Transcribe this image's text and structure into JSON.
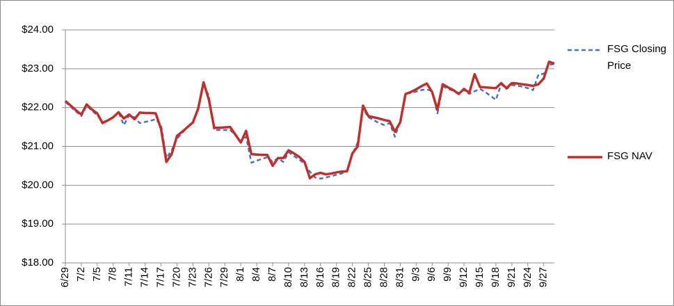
{
  "chart_data": {
    "type": "line",
    "categories": [
      "6/29",
      null,
      null,
      "7/2",
      null,
      null,
      "7/5",
      null,
      null,
      "7/8",
      null,
      null,
      "7/11",
      null,
      null,
      "7/14",
      null,
      null,
      "7/17",
      null,
      null,
      "7/20",
      null,
      null,
      "7/23",
      null,
      null,
      "7/26",
      null,
      null,
      "7/29",
      null,
      null,
      "8/1",
      null,
      null,
      "8/4",
      null,
      null,
      "8/7",
      null,
      null,
      "8/10",
      null,
      null,
      "8/13",
      null,
      null,
      "8/16",
      null,
      null,
      "8/19",
      null,
      null,
      "8/22",
      null,
      null,
      "8/25",
      null,
      null,
      "8/28",
      null,
      null,
      "8/31",
      null,
      null,
      "9/3",
      null,
      null,
      "9/6",
      null,
      null,
      "9/9",
      null,
      null,
      "9/12",
      null,
      null,
      "9/15",
      null,
      null,
      "9/18",
      null,
      null,
      "9/21",
      null,
      null,
      "9/24",
      null,
      null,
      "9/27",
      null,
      null
    ],
    "series": [
      {
        "name": "FSG Closing Price",
        "color": "#4472c4",
        "dash": true,
        "values": [
          22.15,
          22.02,
          21.9,
          21.78,
          22.05,
          21.92,
          21.8,
          21.62,
          21.68,
          21.75,
          21.88,
          21.55,
          21.8,
          21.75,
          21.6,
          21.63,
          21.66,
          21.7,
          21.55,
          20.7,
          20.9,
          21.2,
          21.35,
          21.5,
          21.6,
          21.95,
          22.6,
          22.3,
          21.42,
          21.42,
          21.42,
          21.42,
          21.3,
          21.12,
          21.25,
          20.58,
          20.63,
          20.68,
          20.72,
          20.6,
          20.7,
          20.6,
          20.85,
          20.75,
          20.66,
          20.55,
          20.35,
          20.2,
          20.17,
          20.2,
          20.23,
          20.27,
          20.3,
          20.38,
          20.8,
          21.1,
          21.98,
          21.75,
          21.68,
          21.6,
          21.55,
          21.6,
          21.25,
          21.65,
          22.35,
          22.38,
          22.41,
          22.45,
          22.47,
          22.42,
          21.85,
          22.55,
          22.48,
          22.43,
          22.38,
          22.45,
          22.35,
          22.42,
          22.48,
          22.4,
          22.3,
          22.2,
          22.6,
          22.48,
          22.58,
          22.56,
          22.54,
          22.5,
          22.45,
          22.85,
          22.87,
          23.1,
          23.12
        ]
      },
      {
        "name": "FSG NAV",
        "color": "#c0302b",
        "dash": false,
        "values": [
          22.17,
          22.05,
          21.93,
          21.82,
          22.08,
          21.95,
          21.85,
          21.6,
          21.67,
          21.75,
          21.88,
          21.72,
          21.82,
          21.7,
          21.87,
          21.86,
          21.86,
          21.85,
          21.45,
          20.6,
          20.8,
          21.27,
          21.38,
          21.5,
          21.62,
          21.98,
          22.65,
          22.2,
          21.48,
          21.48,
          21.49,
          21.5,
          21.3,
          21.1,
          21.4,
          20.8,
          20.79,
          20.78,
          20.78,
          20.5,
          20.7,
          20.7,
          20.9,
          20.82,
          20.73,
          20.6,
          20.18,
          20.28,
          20.32,
          20.28,
          20.3,
          20.33,
          20.35,
          20.36,
          20.82,
          21.0,
          22.05,
          21.78,
          21.75,
          21.72,
          21.68,
          21.65,
          21.38,
          21.62,
          22.35,
          22.4,
          22.47,
          22.55,
          22.62,
          22.4,
          21.95,
          22.6,
          22.52,
          22.45,
          22.35,
          22.48,
          22.38,
          22.86,
          22.53,
          22.52,
          22.51,
          22.5,
          22.63,
          22.5,
          22.63,
          22.62,
          22.6,
          22.58,
          22.56,
          22.6,
          22.75,
          23.18,
          23.13
        ]
      }
    ],
    "ylim": [
      18,
      24
    ],
    "yticks": [
      {
        "value": 18,
        "label": "$18.00"
      },
      {
        "value": 19,
        "label": "$19.00"
      },
      {
        "value": 20,
        "label": "$20.00"
      },
      {
        "value": 21,
        "label": "$21.00"
      },
      {
        "value": 22,
        "label": "$22.00"
      },
      {
        "value": 23,
        "label": "$23.00"
      },
      {
        "value": 24,
        "label": "$24.00"
      }
    ],
    "grid": true,
    "legend": "right"
  }
}
